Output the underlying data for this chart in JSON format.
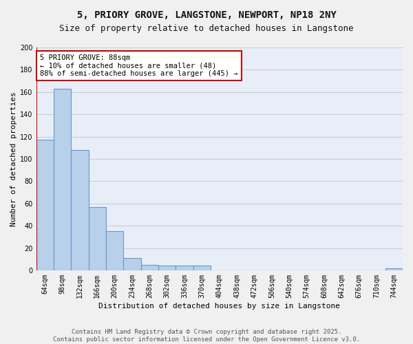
{
  "title_line1": "5, PRIORY GROVE, LANGSTONE, NEWPORT, NP18 2NY",
  "title_line2": "Size of property relative to detached houses in Langstone",
  "xlabel": "Distribution of detached houses by size in Langstone",
  "ylabel": "Number of detached properties",
  "categories": [
    "64sqm",
    "98sqm",
    "132sqm",
    "166sqm",
    "200sqm",
    "234sqm",
    "268sqm",
    "302sqm",
    "336sqm",
    "370sqm",
    "404sqm",
    "438sqm",
    "472sqm",
    "506sqm",
    "540sqm",
    "574sqm",
    "608sqm",
    "642sqm",
    "676sqm",
    "710sqm",
    "744sqm"
  ],
  "values": [
    117,
    163,
    108,
    57,
    35,
    11,
    5,
    4,
    4,
    4,
    0,
    0,
    0,
    0,
    0,
    0,
    0,
    0,
    0,
    0,
    2
  ],
  "bar_color": "#b8d0ea",
  "bar_edge_color": "#6699cc",
  "annotation_text": "5 PRIORY GROVE: 88sqm\n← 10% of detached houses are smaller (48)\n88% of semi-detached houses are larger (445) →",
  "annotation_box_color": "#ffffff",
  "annotation_box_edge_color": "#cc0000",
  "ylim": [
    0,
    200
  ],
  "yticks": [
    0,
    20,
    40,
    60,
    80,
    100,
    120,
    140,
    160,
    180,
    200
  ],
  "background_color": "#e8eef8",
  "grid_color": "#cccccc",
  "fig_bg_color": "#f0f0f0",
  "footer_line1": "Contains HM Land Registry data © Crown copyright and database right 2025.",
  "footer_line2": "Contains public sector information licensed under the Open Government Licence v3.0.",
  "title_fontsize": 10,
  "subtitle_fontsize": 9,
  "axis_label_fontsize": 8,
  "tick_fontsize": 7,
  "annotation_fontsize": 7.5,
  "footer_fontsize": 6.5
}
